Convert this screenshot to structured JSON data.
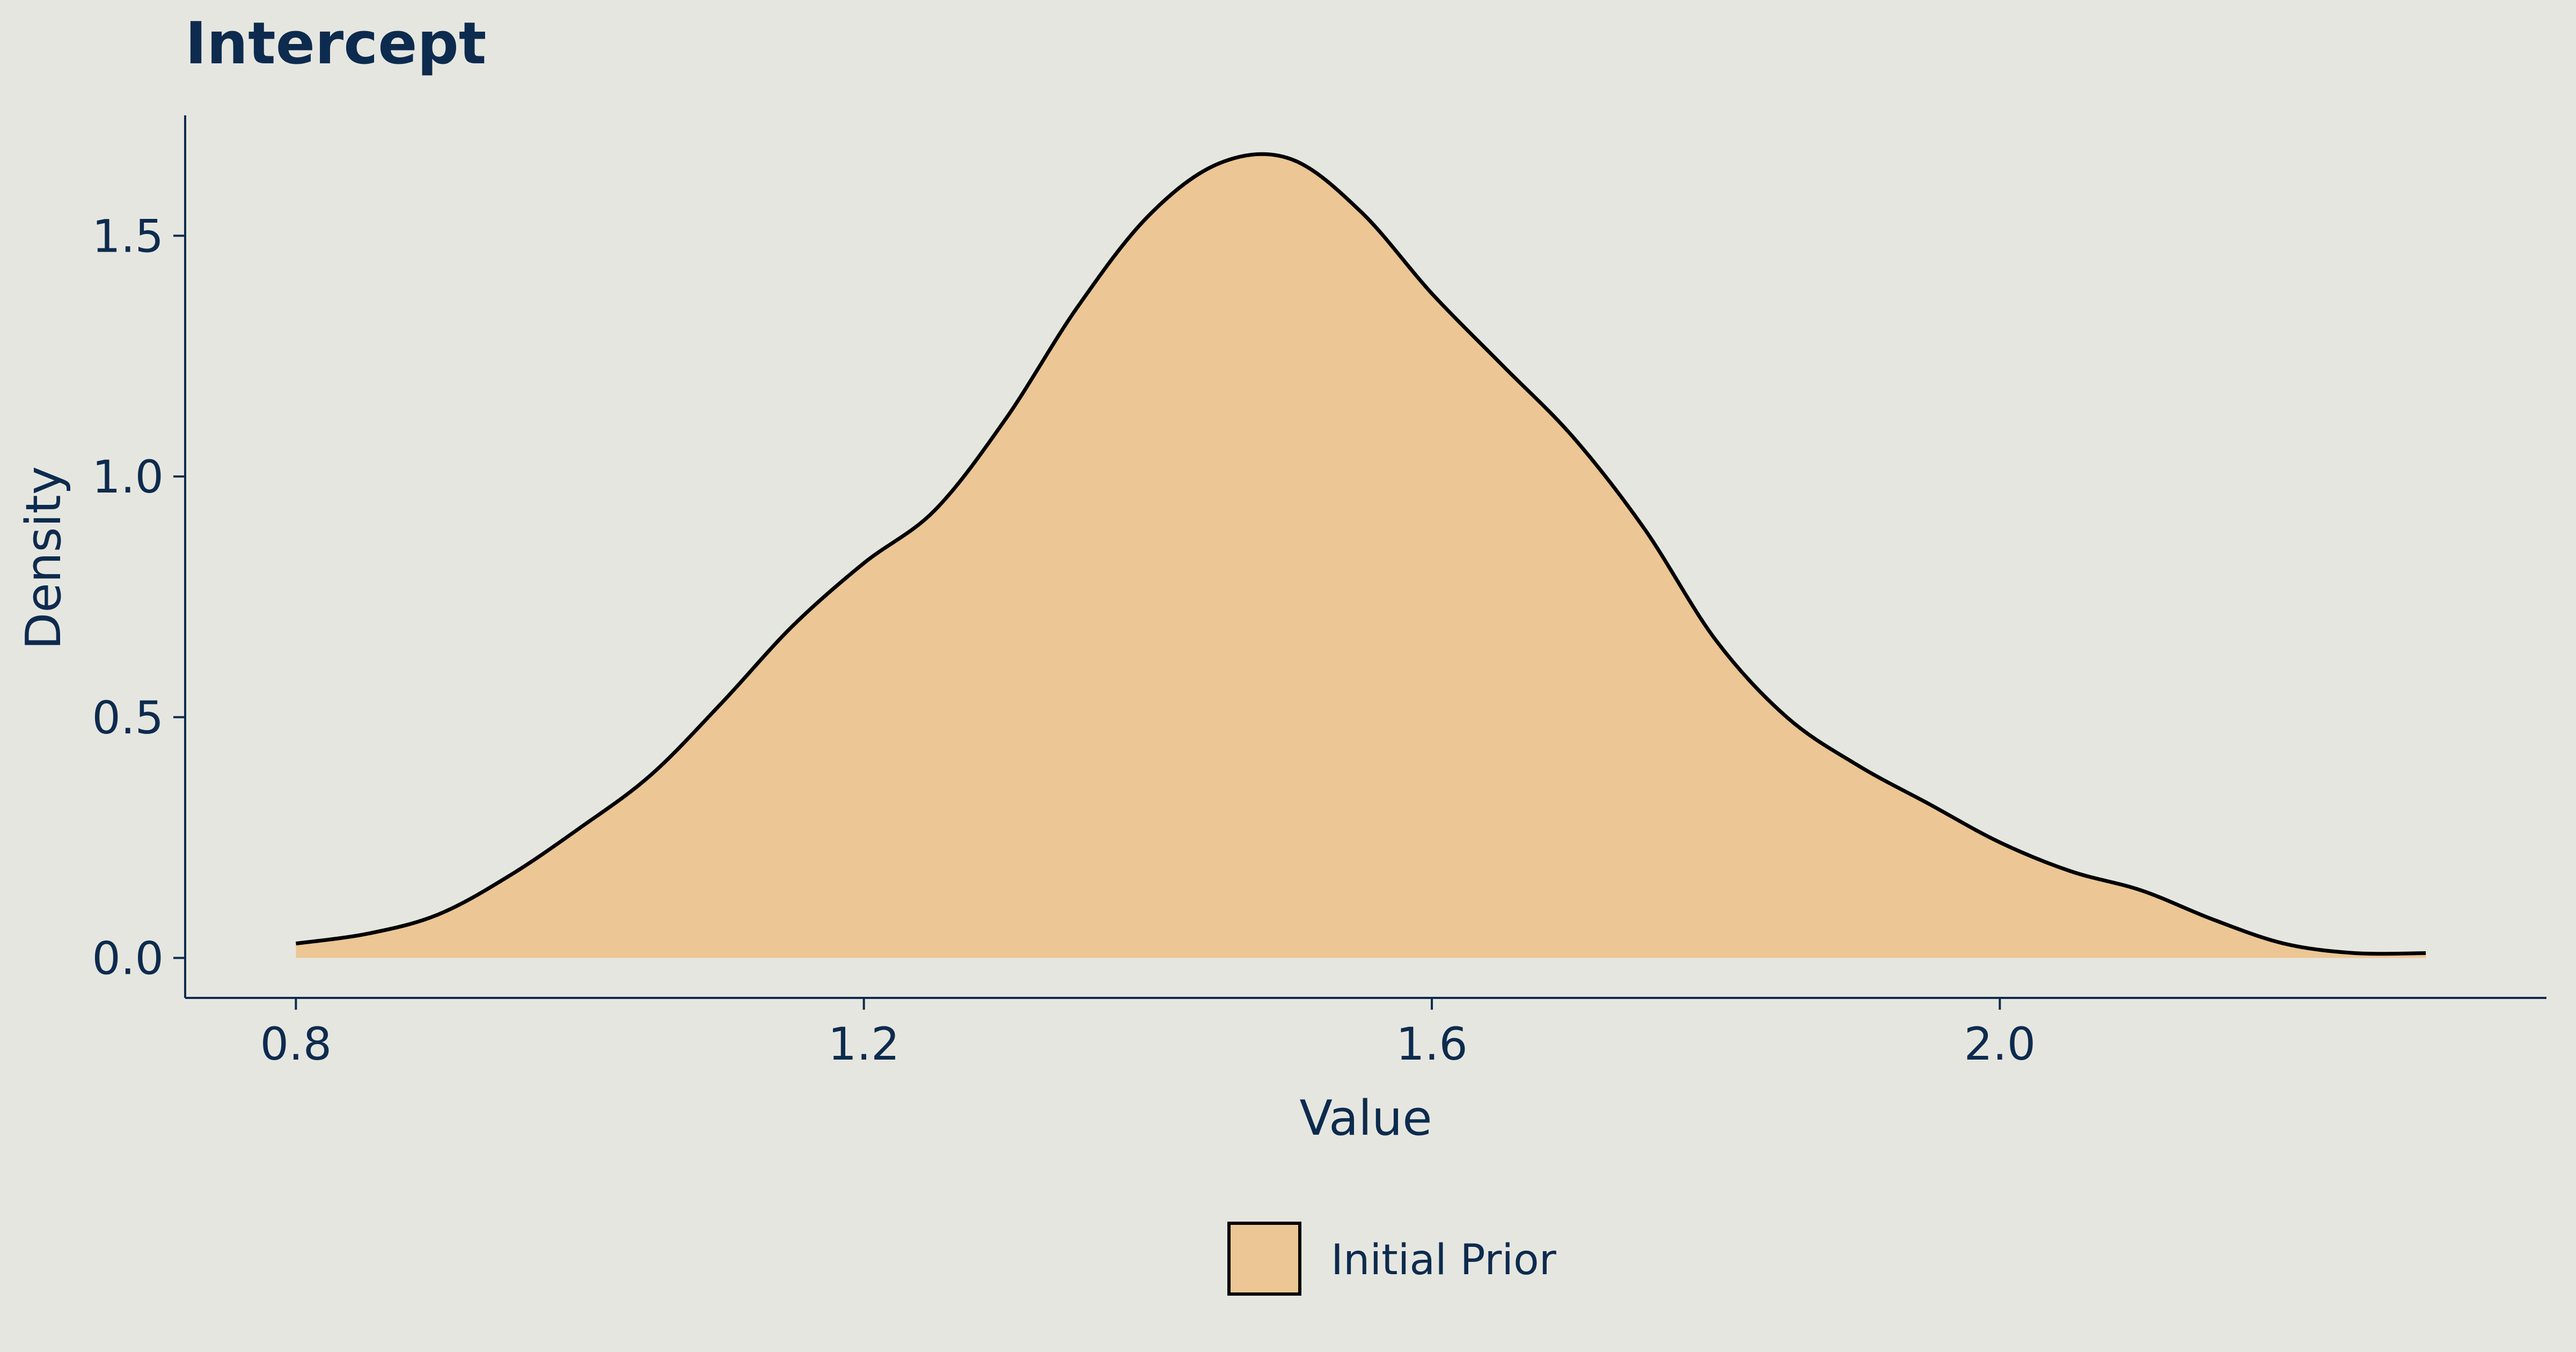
{
  "chart_data": {
    "type": "area",
    "title": "Intercept",
    "xlabel": "Value",
    "ylabel": "Density",
    "xlim": [
      0.722,
      2.385
    ],
    "ylim": [
      -0.083,
      1.75
    ],
    "x_ticks": [
      0.8,
      1.2,
      1.6,
      2.0
    ],
    "x_tick_labels": [
      "0.8",
      "1.2",
      "1.6",
      "2.0"
    ],
    "y_ticks": [
      0.0,
      0.5,
      1.0,
      1.5
    ],
    "y_tick_labels": [
      "0.0",
      "0.5",
      "1.0",
      "1.5"
    ],
    "grid": false,
    "legend_position": "bottom",
    "series": [
      {
        "name": "Initial Prior",
        "fill": "#ecc694",
        "stroke": "#000000",
        "x": [
          0.8,
          0.85,
          0.9,
          0.95,
          1.0,
          1.05,
          1.1,
          1.15,
          1.2,
          1.25,
          1.3,
          1.35,
          1.4,
          1.45,
          1.5,
          1.55,
          1.6,
          1.65,
          1.7,
          1.75,
          1.8,
          1.85,
          1.9,
          1.95,
          2.0,
          2.05,
          2.1,
          2.15,
          2.2,
          2.25,
          2.3
        ],
        "y": [
          0.03,
          0.05,
          0.09,
          0.17,
          0.27,
          0.38,
          0.53,
          0.69,
          0.82,
          0.93,
          1.12,
          1.35,
          1.54,
          1.65,
          1.66,
          1.55,
          1.38,
          1.23,
          1.08,
          0.89,
          0.66,
          0.5,
          0.4,
          0.32,
          0.24,
          0.18,
          0.14,
          0.08,
          0.03,
          0.01,
          0.01
        ]
      }
    ]
  },
  "colors": {
    "background": "#e6e6e0",
    "text": "#0d2b4e",
    "fill": "#ecc694",
    "stroke": "#000000"
  }
}
